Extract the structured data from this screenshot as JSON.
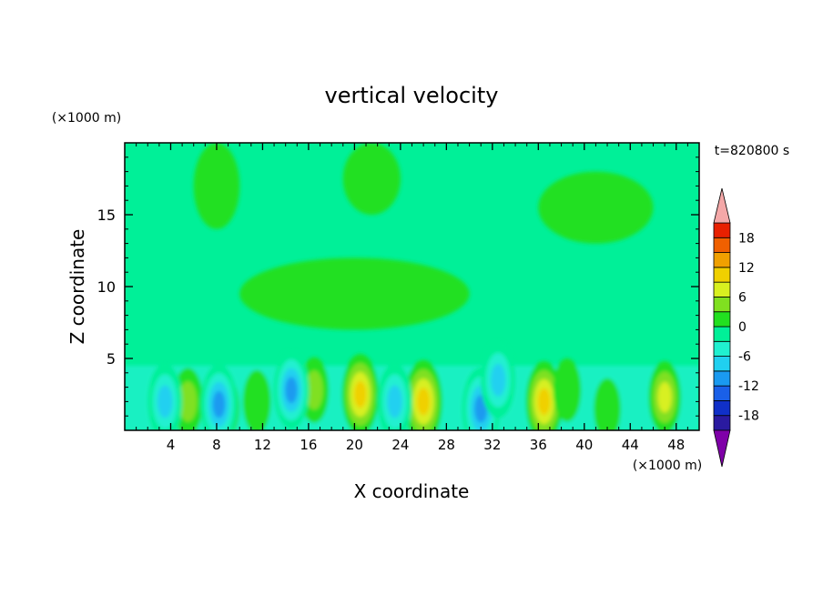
{
  "chart_data": {
    "type": "heatmap",
    "title": "vertical velocity",
    "xlabel": "X coordinate",
    "ylabel": "Z coordinate",
    "x_unit": "(×1000 m)",
    "y_unit": "(×1000 m)",
    "time_label": "t=820800 s",
    "xlim": [
      0,
      50
    ],
    "ylim": [
      0,
      20
    ],
    "x_ticks": [
      4,
      8,
      12,
      16,
      20,
      24,
      28,
      32,
      36,
      40,
      44,
      48
    ],
    "y_ticks": [
      5,
      10,
      15
    ],
    "colorbar": {
      "levels": [
        -21,
        -18,
        -15,
        -12,
        -9,
        -6,
        -3,
        0,
        3,
        6,
        9,
        12,
        15,
        18,
        21
      ],
      "tick_labels": [
        18,
        12,
        6,
        0,
        -6,
        -12,
        -18
      ],
      "colors": [
        "#7f00a8",
        "#2a1aa0",
        "#1030c8",
        "#1a60e8",
        "#1a9af0",
        "#20d0f0",
        "#20f0d0",
        "#00f098",
        "#22e020",
        "#80e020",
        "#d8f020",
        "#f0d000",
        "#f0a000",
        "#f06000",
        "#e82000",
        "#f4a8a8"
      ],
      "extend": "both"
    },
    "features": {
      "updrafts": [
        {
          "x": 5.5,
          "z": 2.0,
          "w": 6
        },
        {
          "x": 8.8,
          "z": 1.6,
          "w": 3
        },
        {
          "x": 11.5,
          "z": 2.0,
          "w": 4
        },
        {
          "x": 16.5,
          "z": 2.8,
          "w": 5
        },
        {
          "x": 20.5,
          "z": 2.5,
          "w": 12
        },
        {
          "x": 26.0,
          "z": 2.0,
          "w": 13
        },
        {
          "x": 36.5,
          "z": 2.0,
          "w": 12
        },
        {
          "x": 38.5,
          "z": 2.8,
          "w": 4
        },
        {
          "x": 42.0,
          "z": 1.5,
          "w": 3
        },
        {
          "x": 47.0,
          "z": 2.3,
          "w": 8
        }
      ],
      "downdrafts": [
        {
          "x": 3.5,
          "z": 2.0,
          "w": -10
        },
        {
          "x": 8.2,
          "z": 1.8,
          "w": -12
        },
        {
          "x": 14.5,
          "z": 2.8,
          "w": -11
        },
        {
          "x": 23.5,
          "z": 2.0,
          "w": -10
        },
        {
          "x": 31.0,
          "z": 1.5,
          "w": -13
        },
        {
          "x": 32.5,
          "z": 3.5,
          "w": -10
        }
      ],
      "upper_weak_updraft_regions": [
        {
          "x": [
            6,
            10
          ],
          "z": [
            14,
            20
          ]
        },
        {
          "x": [
            19,
            24
          ],
          "z": [
            15,
            20
          ]
        },
        {
          "x": [
            36,
            46
          ],
          "z": [
            13,
            18
          ]
        },
        {
          "x": [
            10,
            30
          ],
          "z": [
            7,
            12
          ]
        }
      ]
    }
  }
}
